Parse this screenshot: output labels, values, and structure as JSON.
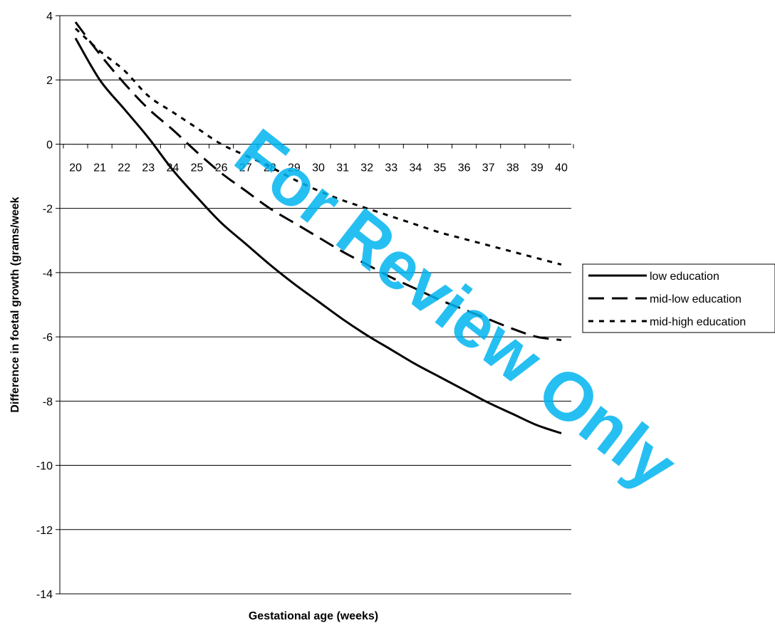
{
  "chart_data": {
    "type": "line",
    "title": "",
    "xlabel": "Gestational age (weeks)",
    "ylabel": "Difference in foetal growth (grams/week",
    "x": [
      20,
      21,
      22,
      23,
      24,
      25,
      26,
      27,
      28,
      29,
      30,
      31,
      32,
      33,
      34,
      35,
      36,
      37,
      38,
      39,
      40
    ],
    "x_tick_labels": [
      "20",
      "21",
      "22",
      "23",
      "24",
      "25",
      "26",
      "27",
      "28",
      "29",
      "30",
      "31",
      "32",
      "33",
      "34",
      "35",
      "36",
      "37",
      "38",
      "39",
      "40"
    ],
    "ylim": [
      -14,
      4
    ],
    "y_ticks": [
      4,
      2,
      0,
      -2,
      -4,
      -6,
      -8,
      -10,
      -12,
      -14
    ],
    "y_tick_labels": [
      "4",
      "2",
      "0",
      "-2",
      "-4",
      "-6",
      "-8",
      "-10",
      "-12",
      "-14"
    ],
    "grid": "horizontal",
    "legend_position": "right",
    "series": [
      {
        "name": "low education",
        "style": "solid",
        "values": [
          3.3,
          2.0,
          1.1,
          0.2,
          -0.8,
          -1.65,
          -2.45,
          -3.1,
          -3.75,
          -4.35,
          -4.9,
          -5.45,
          -5.95,
          -6.4,
          -6.85,
          -7.25,
          -7.65,
          -8.05,
          -8.4,
          -8.75,
          -9.0
        ]
      },
      {
        "name": "mid-low education",
        "style": "dashed",
        "values": [
          3.8,
          2.8,
          1.9,
          1.1,
          0.45,
          -0.25,
          -0.9,
          -1.45,
          -2.0,
          -2.45,
          -2.9,
          -3.35,
          -3.75,
          -4.15,
          -4.5,
          -4.85,
          -5.15,
          -5.45,
          -5.75,
          -6.0,
          -6.1
        ]
      },
      {
        "name": "mid-high education",
        "style": "dotted",
        "values": [
          3.6,
          2.9,
          2.3,
          1.5,
          1.0,
          0.5,
          0.0,
          -0.35,
          -0.7,
          -1.1,
          -1.45,
          -1.75,
          -2.0,
          -2.25,
          -2.5,
          -2.75,
          -2.95,
          -3.15,
          -3.35,
          -3.55,
          -3.75
        ]
      }
    ]
  },
  "watermark": {
    "text": "For Review Only",
    "color": "#00b4f0"
  }
}
